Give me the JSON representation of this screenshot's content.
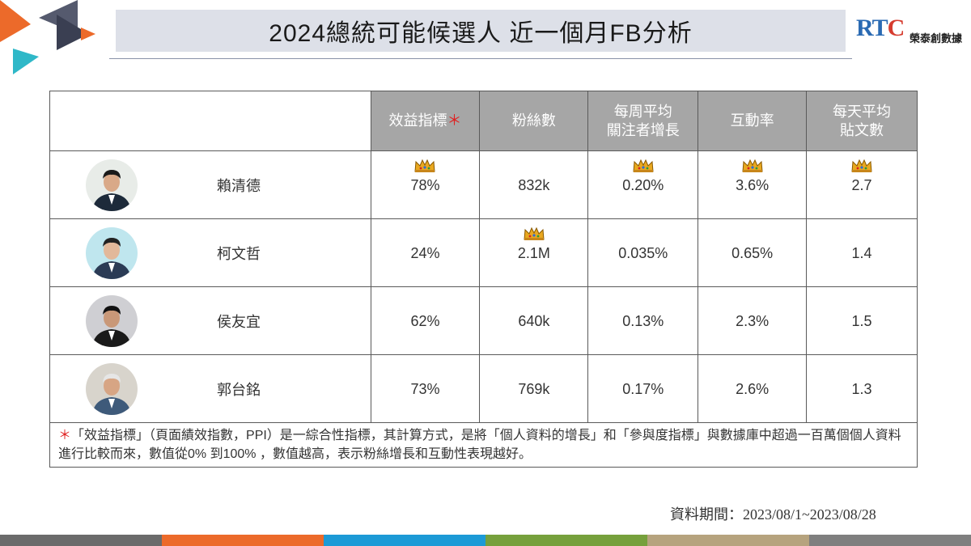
{
  "title": "2024總統可能候選人 近一個月FB分析",
  "logo": {
    "mark": "RTC",
    "name": "榮泰創數據"
  },
  "table": {
    "headers": {
      "ppi": "效益指標",
      "ppi_marker": "＊",
      "fans": "粉絲數",
      "growth_line1": "每周平均",
      "growth_line2": "關注者增長",
      "engagement": "互動率",
      "posts_line1": "每天平均",
      "posts_line2": "貼文數"
    },
    "rows": [
      {
        "name": "賴清德",
        "ppi": "78%",
        "fans": "832k",
        "growth": "0.20%",
        "engagement": "3.6%",
        "posts": "2.7",
        "crowns": {
          "ppi": true,
          "fans": false,
          "growth": true,
          "engagement": true,
          "posts": true
        }
      },
      {
        "name": "柯文哲",
        "ppi": "24%",
        "fans": "2.1M",
        "growth": "0.035%",
        "engagement": "0.65%",
        "posts": "1.4",
        "crowns": {
          "ppi": false,
          "fans": true,
          "growth": false,
          "engagement": false,
          "posts": false
        }
      },
      {
        "name": "侯友宜",
        "ppi": "62%",
        "fans": "640k",
        "growth": "0.13%",
        "engagement": "2.3%",
        "posts": "1.5",
        "crowns": {
          "ppi": false,
          "fans": false,
          "growth": false,
          "engagement": false,
          "posts": false
        }
      },
      {
        "name": "郭台銘",
        "ppi": "73%",
        "fans": "769k",
        "growth": "0.17%",
        "engagement": "2.6%",
        "posts": "1.3",
        "crowns": {
          "ppi": false,
          "fans": false,
          "growth": false,
          "engagement": false,
          "posts": false
        }
      }
    ]
  },
  "note": {
    "marker": "＊",
    "text": "「效益指標」（頁面績效指數，PPI）是一綜合性指標，其計算方式，是將「個人資料的增長」和「參與度指標」與數據庫中超過一百萬個個人資料進行比較而來，數值從0% 到100% ，數值越高，表示粉絲增長和互動性表現越好。"
  },
  "period": "資料期間：2023/08/1~2023/08/28",
  "colors": {
    "header_bg": "#a6a6a6",
    "title_bg": "#dde0e8",
    "accent_red": "#e02020",
    "stripes": [
      "#6b6b6b",
      "#ec6a2a",
      "#1c9ad6",
      "#76a03c",
      "#b6a37e",
      "#7f7f7f"
    ]
  }
}
